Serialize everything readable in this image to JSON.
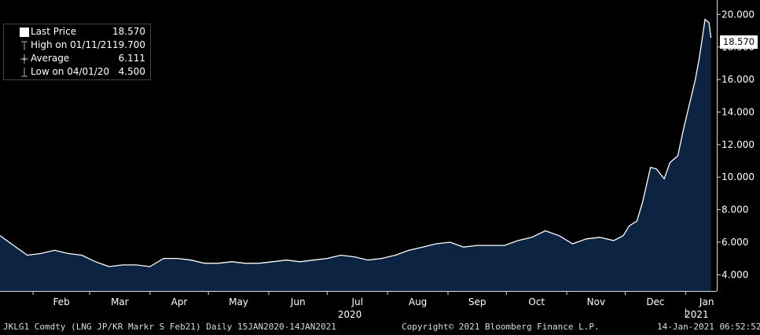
{
  "legend": {
    "last_price_label": "Last Price",
    "last_price_value": "18.570",
    "high_label": "High on 01/11/21",
    "high_value": "19.700",
    "avg_label": "Average",
    "avg_value": "6.111",
    "low_label": "Low on 04/01/20",
    "low_value": "4.500"
  },
  "price_tag": "18.570",
  "footer": {
    "left": "JKLG1 Comdty (LNG JP/KR Markr S Feb21)  Daily 15JAN2020-14JAN2021",
    "center": "Copyright© 2021 Bloomberg Finance L.P.",
    "right": "14-Jan-2021 06:52:52"
  },
  "colors": {
    "background": "#000000",
    "area_fill": "#0c2341",
    "line": "#ffffff",
    "text": "#ffffff"
  },
  "chart_data": {
    "type": "area",
    "title": "",
    "xlabel": "",
    "ylabel": "",
    "x_tick_labels": [
      "Feb",
      "Mar",
      "Apr",
      "May",
      "Jun",
      "Jul",
      "Aug",
      "Sep",
      "Oct",
      "Nov",
      "Dec",
      "Jan"
    ],
    "year_labels": [
      "2020",
      "2021"
    ],
    "y_ticks": [
      "4.000",
      "6.000",
      "8.000",
      "10.000",
      "12.000",
      "14.000",
      "16.000",
      "18.000",
      "20.000"
    ],
    "ylim": [
      3.0,
      20.6
    ],
    "grid": false,
    "legend_position": "top-left",
    "series": [
      {
        "name": "Last Price",
        "points": [
          [
            "2020-01-15",
            6.4
          ],
          [
            "2020-01-22",
            5.8
          ],
          [
            "2020-01-29",
            5.2
          ],
          [
            "2020-02-05",
            5.3
          ],
          [
            "2020-02-12",
            5.5
          ],
          [
            "2020-02-19",
            5.3
          ],
          [
            "2020-02-26",
            5.2
          ],
          [
            "2020-03-04",
            4.8
          ],
          [
            "2020-03-11",
            4.5
          ],
          [
            "2020-03-18",
            4.6
          ],
          [
            "2020-03-25",
            4.6
          ],
          [
            "2020-04-01",
            4.5
          ],
          [
            "2020-04-08",
            5.0
          ],
          [
            "2020-04-15",
            5.0
          ],
          [
            "2020-04-22",
            4.9
          ],
          [
            "2020-04-29",
            4.7
          ],
          [
            "2020-05-06",
            4.7
          ],
          [
            "2020-05-13",
            4.8
          ],
          [
            "2020-05-20",
            4.7
          ],
          [
            "2020-05-27",
            4.7
          ],
          [
            "2020-06-03",
            4.8
          ],
          [
            "2020-06-10",
            4.9
          ],
          [
            "2020-06-17",
            4.8
          ],
          [
            "2020-06-24",
            4.9
          ],
          [
            "2020-07-01",
            5.0
          ],
          [
            "2020-07-08",
            5.2
          ],
          [
            "2020-07-15",
            5.1
          ],
          [
            "2020-07-22",
            4.9
          ],
          [
            "2020-07-29",
            5.0
          ],
          [
            "2020-08-05",
            5.2
          ],
          [
            "2020-08-12",
            5.5
          ],
          [
            "2020-08-19",
            5.7
          ],
          [
            "2020-08-26",
            5.9
          ],
          [
            "2020-09-02",
            6.0
          ],
          [
            "2020-09-09",
            5.7
          ],
          [
            "2020-09-16",
            5.8
          ],
          [
            "2020-09-23",
            5.8
          ],
          [
            "2020-09-30",
            5.8
          ],
          [
            "2020-10-07",
            6.1
          ],
          [
            "2020-10-14",
            6.3
          ],
          [
            "2020-10-21",
            6.7
          ],
          [
            "2020-10-28",
            6.4
          ],
          [
            "2020-11-04",
            5.9
          ],
          [
            "2020-11-11",
            6.2
          ],
          [
            "2020-11-18",
            6.3
          ],
          [
            "2020-11-25",
            6.1
          ],
          [
            "2020-11-30",
            6.4
          ],
          [
            "2020-12-03",
            7.0
          ],
          [
            "2020-12-07",
            7.3
          ],
          [
            "2020-12-10",
            8.5
          ],
          [
            "2020-12-14",
            10.6
          ],
          [
            "2020-12-17",
            10.5
          ],
          [
            "2020-12-21",
            9.9
          ],
          [
            "2020-12-24",
            10.9
          ],
          [
            "2020-12-28",
            11.3
          ],
          [
            "2020-12-31",
            13.0
          ],
          [
            "2021-01-04",
            15.0
          ],
          [
            "2021-01-06",
            16.0
          ],
          [
            "2021-01-08",
            17.3
          ],
          [
            "2021-01-11",
            19.7
          ],
          [
            "2021-01-13",
            19.5
          ],
          [
            "2021-01-14",
            18.57
          ]
        ]
      }
    ]
  }
}
